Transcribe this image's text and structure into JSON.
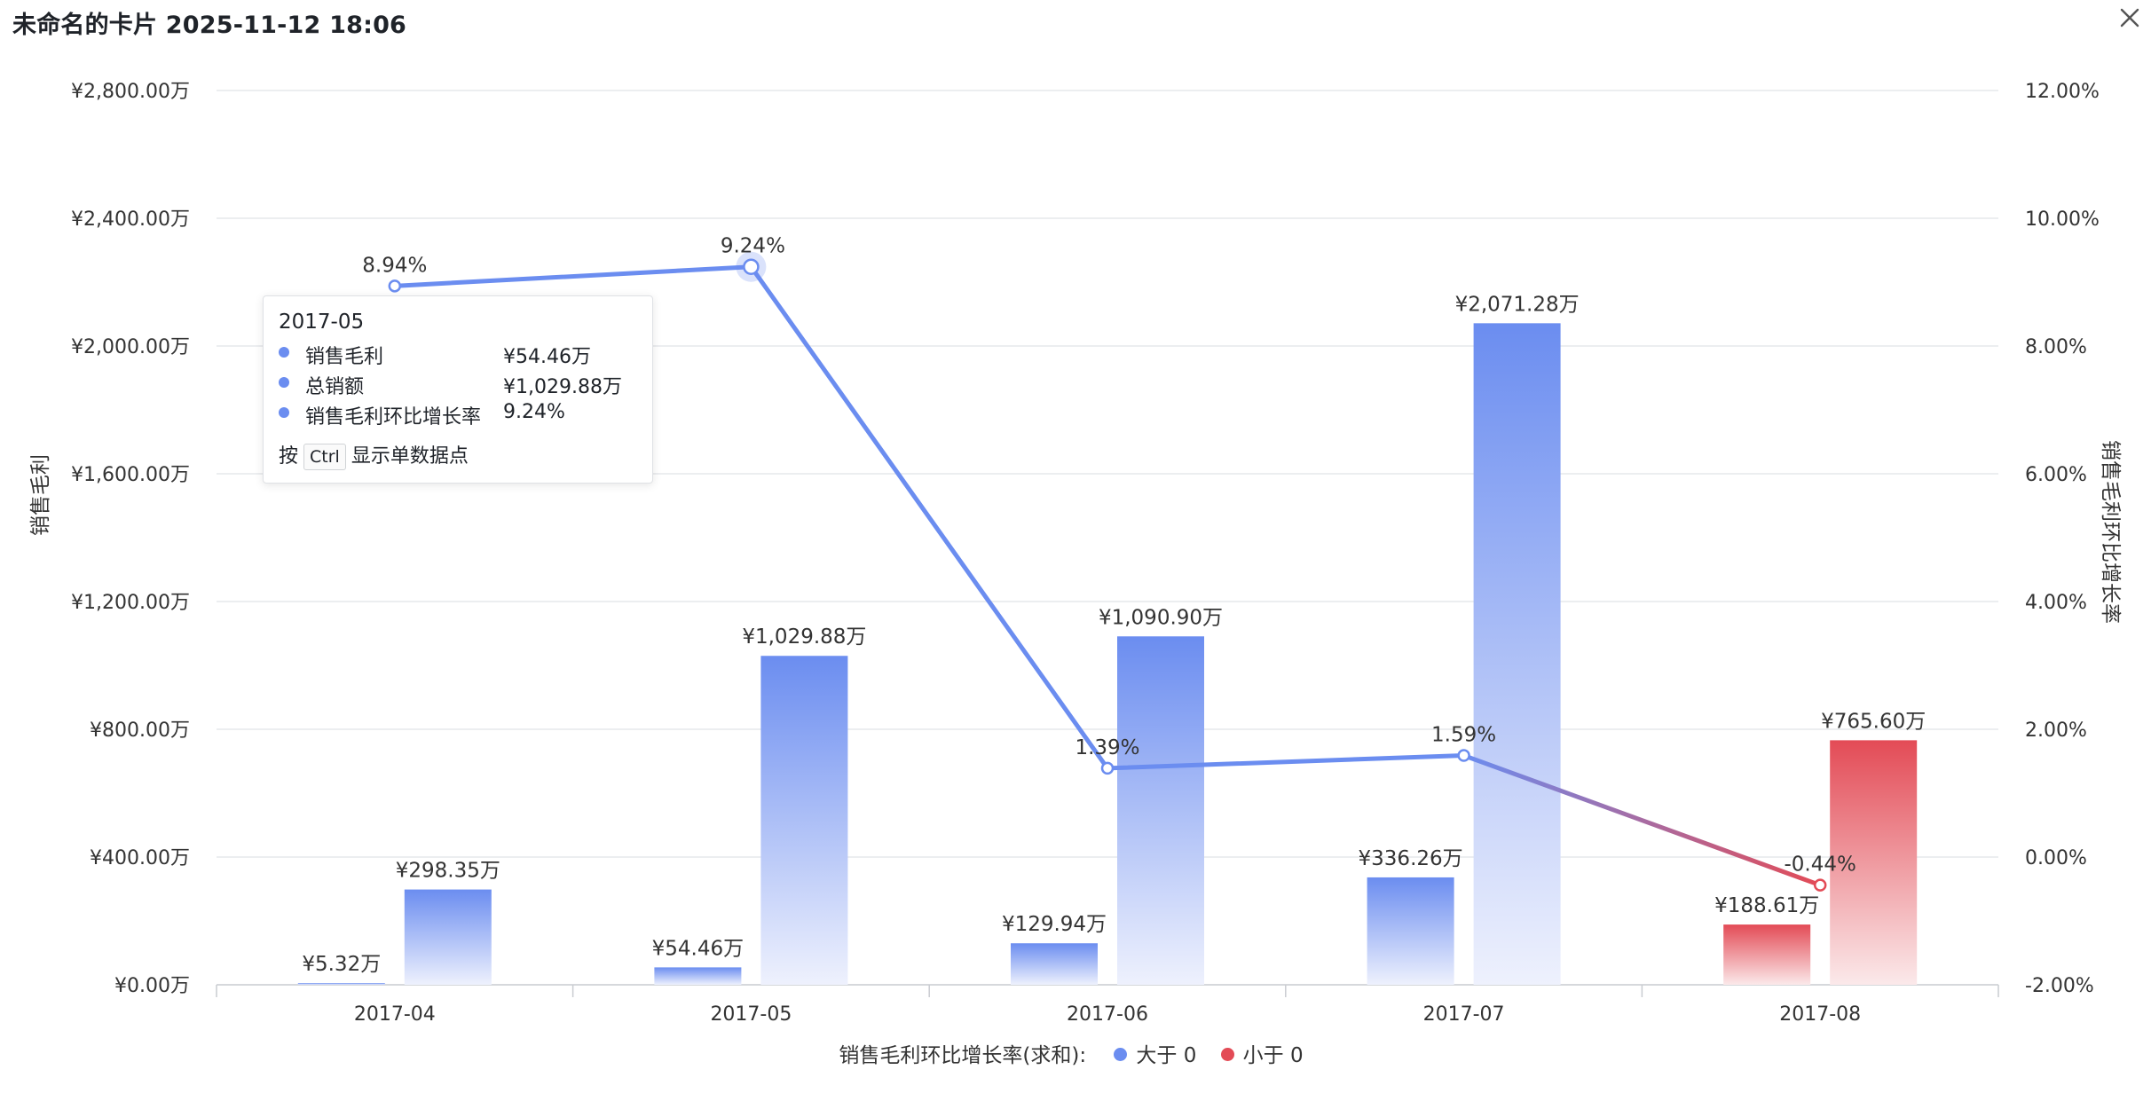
{
  "card": {
    "title": "未命名的卡片 2025-11-12 18:06"
  },
  "icons": {
    "close": "close-icon"
  },
  "colors": {
    "positive": "#6b8df0",
    "negative": "#e34b56",
    "grid": "#e6e8eb",
    "axis_text": "#333333"
  },
  "chart_data": {
    "type": "bar",
    "categories": [
      "2017-04",
      "2017-05",
      "2017-06",
      "2017-07",
      "2017-08"
    ],
    "series": [
      {
        "name": "销售毛利",
        "axis": "left",
        "values": [
          5.32,
          54.46,
          129.94,
          336.26,
          188.61
        ],
        "labels": [
          "¥5.32万",
          "¥54.46万",
          "¥129.94万",
          "¥336.26万",
          "¥188.61万"
        ]
      },
      {
        "name": "总销额",
        "axis": "left",
        "values": [
          298.35,
          1029.88,
          1090.9,
          2071.28,
          765.6
        ],
        "labels": [
          "¥298.35万",
          "¥1,029.88万",
          "¥1,090.90万",
          "¥2,071.28万",
          "¥765.60万"
        ]
      },
      {
        "name": "销售毛利环比增长率",
        "type": "line",
        "axis": "right",
        "values": [
          8.94,
          9.24,
          1.39,
          1.59,
          -0.44
        ],
        "labels": [
          "8.94%",
          "9.24%",
          "1.39%",
          "1.59%",
          "-0.44%"
        ]
      }
    ],
    "bar_colors": [
      "positive",
      "positive",
      "positive",
      "positive",
      "negative"
    ],
    "y_left": {
      "label": "销售毛利",
      "min": 0,
      "max": 2800,
      "ticks": [
        "¥0.00万",
        "¥400.00万",
        "¥800.00万",
        "¥1,200.00万",
        "¥1,600.00万",
        "¥2,000.00万",
        "¥2,400.00万",
        "¥2,800.00万"
      ]
    },
    "y_right": {
      "label": "销售毛利环比增长率",
      "min": -2,
      "max": 12,
      "ticks": [
        "-2.00%",
        "0.00%",
        "2.00%",
        "4.00%",
        "6.00%",
        "8.00%",
        "10.00%",
        "12.00%"
      ]
    },
    "grid": true,
    "legend": {
      "position": "bottom",
      "title": "销售毛利环比增长率(求和):",
      "items": [
        {
          "label": "大于 0",
          "color": "positive"
        },
        {
          "label": "小于 0",
          "color": "negative"
        }
      ]
    }
  },
  "tooltip": {
    "header": "2017-05",
    "rows": [
      {
        "name": "销售毛利",
        "value": "¥54.46万"
      },
      {
        "name": "总销额",
        "value": "¥1,029.88万"
      },
      {
        "name": "销售毛利环比增长率",
        "value": "9.24%"
      }
    ],
    "hint_prefix": "按",
    "hint_key": "Ctrl",
    "hint_suffix": "显示单数据点"
  }
}
